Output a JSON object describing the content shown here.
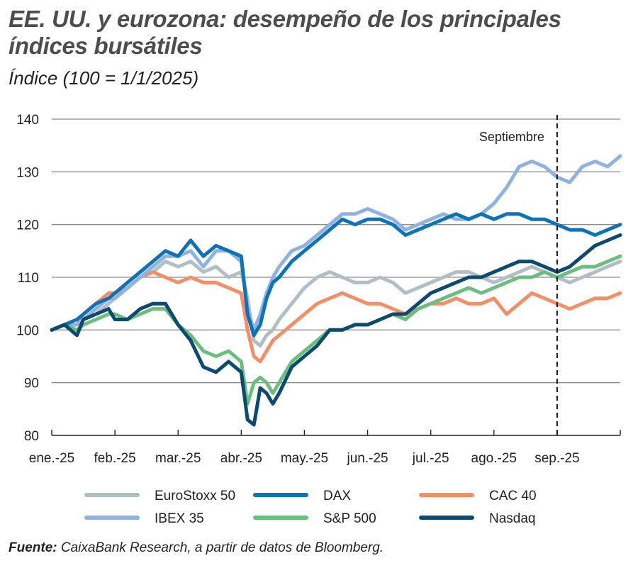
{
  "title": "EE. UU. y eurozona: desempeño de los principales índices bursátiles",
  "subtitle": "Índice (100 = 1/1/2025)",
  "source_label": "Fuente:",
  "source_text": "CaixaBank Research, a partir de datos de Bloomberg.",
  "chart_data": {
    "type": "line",
    "ylim": [
      80,
      140
    ],
    "yticks": [
      80,
      90,
      100,
      110,
      120,
      130,
      140
    ],
    "x_tick_labels": [
      "ene.-25",
      "feb.-25",
      "mar.-25",
      "abr.-25",
      "may.-25",
      "jun.-25",
      "jul.-25",
      "ago.-25",
      "sep.-25"
    ],
    "x_tick_months": [
      0,
      1,
      2,
      3,
      4,
      5,
      6,
      7,
      8
    ],
    "x_range_months": [
      0,
      9
    ],
    "grid": "horizontal",
    "annotation": {
      "text": "Septiembre",
      "x_month": 8,
      "style": "dashed-vertical-line"
    },
    "legend_position": "bottom",
    "series": [
      {
        "name": "EuroStoxx 50",
        "color": "#b2bec3",
        "x": [
          0,
          0.2,
          0.4,
          0.5,
          0.7,
          0.9,
          1.0,
          1.2,
          1.4,
          1.6,
          1.8,
          2.0,
          2.2,
          2.4,
          2.6,
          2.8,
          3.0,
          3.1,
          3.2,
          3.3,
          3.4,
          3.5,
          3.6,
          3.8,
          4.0,
          4.2,
          4.4,
          4.6,
          4.8,
          5.0,
          5.2,
          5.4,
          5.6,
          5.8,
          6.0,
          6.2,
          6.4,
          6.6,
          6.8,
          7.0,
          7.2,
          7.4,
          7.6,
          7.8,
          8.0,
          8.2,
          8.4,
          8.6,
          8.8,
          9.0
        ],
        "values": [
          100,
          101,
          101,
          102,
          103,
          105,
          106,
          108,
          110,
          111,
          113,
          112,
          113,
          111,
          112,
          110,
          111,
          106,
          98,
          97,
          99,
          100,
          102,
          105,
          108,
          110,
          111,
          110,
          109,
          109,
          110,
          109,
          107,
          108,
          109,
          110,
          111,
          111,
          110,
          109,
          110,
          111,
          112,
          111,
          110,
          109,
          110,
          111,
          112,
          113
        ]
      },
      {
        "name": "DAX",
        "color": "#0f72b5",
        "x": [
          0,
          0.2,
          0.4,
          0.5,
          0.7,
          0.9,
          1.0,
          1.2,
          1.4,
          1.6,
          1.8,
          2.0,
          2.2,
          2.4,
          2.6,
          2.8,
          3.0,
          3.1,
          3.2,
          3.3,
          3.4,
          3.5,
          3.6,
          3.8,
          4.0,
          4.2,
          4.4,
          4.6,
          4.8,
          5.0,
          5.2,
          5.4,
          5.6,
          5.8,
          6.0,
          6.2,
          6.4,
          6.6,
          6.8,
          7.0,
          7.2,
          7.4,
          7.6,
          7.8,
          8.0,
          8.2,
          8.4,
          8.6,
          8.8,
          9.0
        ],
        "values": [
          100,
          101,
          102,
          103,
          105,
          106,
          107,
          109,
          111,
          113,
          115,
          114,
          117,
          114,
          116,
          115,
          114,
          103,
          99,
          101,
          106,
          109,
          110,
          113,
          115,
          117,
          119,
          121,
          120,
          121,
          121,
          120,
          118,
          119,
          120,
          121,
          122,
          121,
          122,
          121,
          122,
          122,
          121,
          121,
          120,
          119,
          119,
          118,
          119,
          120
        ]
      },
      {
        "name": "CAC 40",
        "color": "#f0906a",
        "x": [
          0,
          0.2,
          0.4,
          0.5,
          0.7,
          0.9,
          1.0,
          1.2,
          1.4,
          1.6,
          1.8,
          2.0,
          2.2,
          2.4,
          2.6,
          2.8,
          3.0,
          3.1,
          3.2,
          3.3,
          3.4,
          3.5,
          3.6,
          3.8,
          4.0,
          4.2,
          4.4,
          4.6,
          4.8,
          5.0,
          5.2,
          5.4,
          5.6,
          5.8,
          6.0,
          6.2,
          6.4,
          6.6,
          6.8,
          7.0,
          7.2,
          7.4,
          7.6,
          7.8,
          8.0,
          8.2,
          8.4,
          8.6,
          8.8,
          9.0
        ],
        "values": [
          100,
          101,
          101,
          103,
          105,
          107,
          107,
          108,
          110,
          111,
          110,
          109,
          110,
          109,
          109,
          108,
          107,
          100,
          95,
          94,
          96,
          98,
          99,
          101,
          103,
          105,
          106,
          107,
          106,
          105,
          105,
          104,
          103,
          104,
          105,
          105,
          106,
          105,
          105,
          106,
          103,
          105,
          107,
          106,
          105,
          104,
          105,
          106,
          106,
          107
        ]
      },
      {
        "name": "IBEX 35",
        "color": "#8fb2e0",
        "x": [
          0,
          0.2,
          0.4,
          0.5,
          0.7,
          0.9,
          1.0,
          1.2,
          1.4,
          1.6,
          1.8,
          2.0,
          2.2,
          2.4,
          2.6,
          2.8,
          3.0,
          3.1,
          3.2,
          3.3,
          3.4,
          3.5,
          3.6,
          3.8,
          4.0,
          4.2,
          4.4,
          4.6,
          4.8,
          5.0,
          5.2,
          5.4,
          5.6,
          5.8,
          6.0,
          6.2,
          6.4,
          6.6,
          6.8,
          7.0,
          7.2,
          7.4,
          7.6,
          7.8,
          8.0,
          8.2,
          8.4,
          8.6,
          8.8,
          9.0
        ],
        "values": [
          100,
          101,
          101,
          102,
          104,
          106,
          106,
          108,
          110,
          112,
          114,
          114,
          115,
          112,
          115,
          115,
          113,
          104,
          100,
          103,
          107,
          110,
          112,
          115,
          116,
          118,
          120,
          122,
          122,
          123,
          122,
          121,
          119,
          120,
          121,
          122,
          121,
          121,
          122,
          124,
          127,
          131,
          132,
          131,
          129,
          128,
          131,
          132,
          131,
          133
        ]
      },
      {
        "name": "S&P 500",
        "color": "#6dbd80",
        "x": [
          0,
          0.2,
          0.4,
          0.5,
          0.7,
          0.9,
          1.0,
          1.2,
          1.4,
          1.6,
          1.8,
          2.0,
          2.2,
          2.4,
          2.6,
          2.8,
          3.0,
          3.1,
          3.2,
          3.3,
          3.4,
          3.5,
          3.6,
          3.8,
          4.0,
          4.2,
          4.4,
          4.6,
          4.8,
          5.0,
          5.2,
          5.4,
          5.6,
          5.8,
          6.0,
          6.2,
          6.4,
          6.6,
          6.8,
          7.0,
          7.2,
          7.4,
          7.6,
          7.8,
          8.0,
          8.2,
          8.4,
          8.6,
          8.8,
          9.0
        ],
        "values": [
          100,
          101,
          100,
          101,
          102,
          103,
          103,
          102,
          103,
          104,
          104,
          101,
          99,
          96,
          95,
          96,
          94,
          86,
          90,
          91,
          90,
          88,
          90,
          94,
          96,
          98,
          100,
          100,
          101,
          101,
          102,
          103,
          102,
          104,
          105,
          106,
          107,
          108,
          107,
          108,
          109,
          110,
          110,
          111,
          110,
          111,
          112,
          112,
          113,
          114
        ]
      },
      {
        "name": "Nasdaq",
        "color": "#0d4a6e",
        "x": [
          0,
          0.2,
          0.4,
          0.5,
          0.7,
          0.9,
          1.0,
          1.2,
          1.4,
          1.6,
          1.8,
          2.0,
          2.2,
          2.4,
          2.6,
          2.8,
          3.0,
          3.1,
          3.2,
          3.3,
          3.4,
          3.5,
          3.6,
          3.8,
          4.0,
          4.2,
          4.4,
          4.6,
          4.8,
          5.0,
          5.2,
          5.4,
          5.6,
          5.8,
          6.0,
          6.2,
          6.4,
          6.6,
          6.8,
          7.0,
          7.2,
          7.4,
          7.6,
          7.8,
          8.0,
          8.2,
          8.4,
          8.6,
          8.8,
          9.0
        ],
        "values": [
          100,
          101,
          99,
          102,
          103,
          104,
          102,
          102,
          104,
          105,
          105,
          101,
          98,
          93,
          92,
          94,
          92,
          83,
          82,
          89,
          88,
          86,
          88,
          93,
          95,
          97,
          100,
          100,
          101,
          101,
          102,
          103,
          103,
          105,
          107,
          108,
          109,
          110,
          110,
          111,
          112,
          113,
          113,
          112,
          111,
          112,
          114,
          116,
          117,
          118
        ]
      }
    ]
  }
}
